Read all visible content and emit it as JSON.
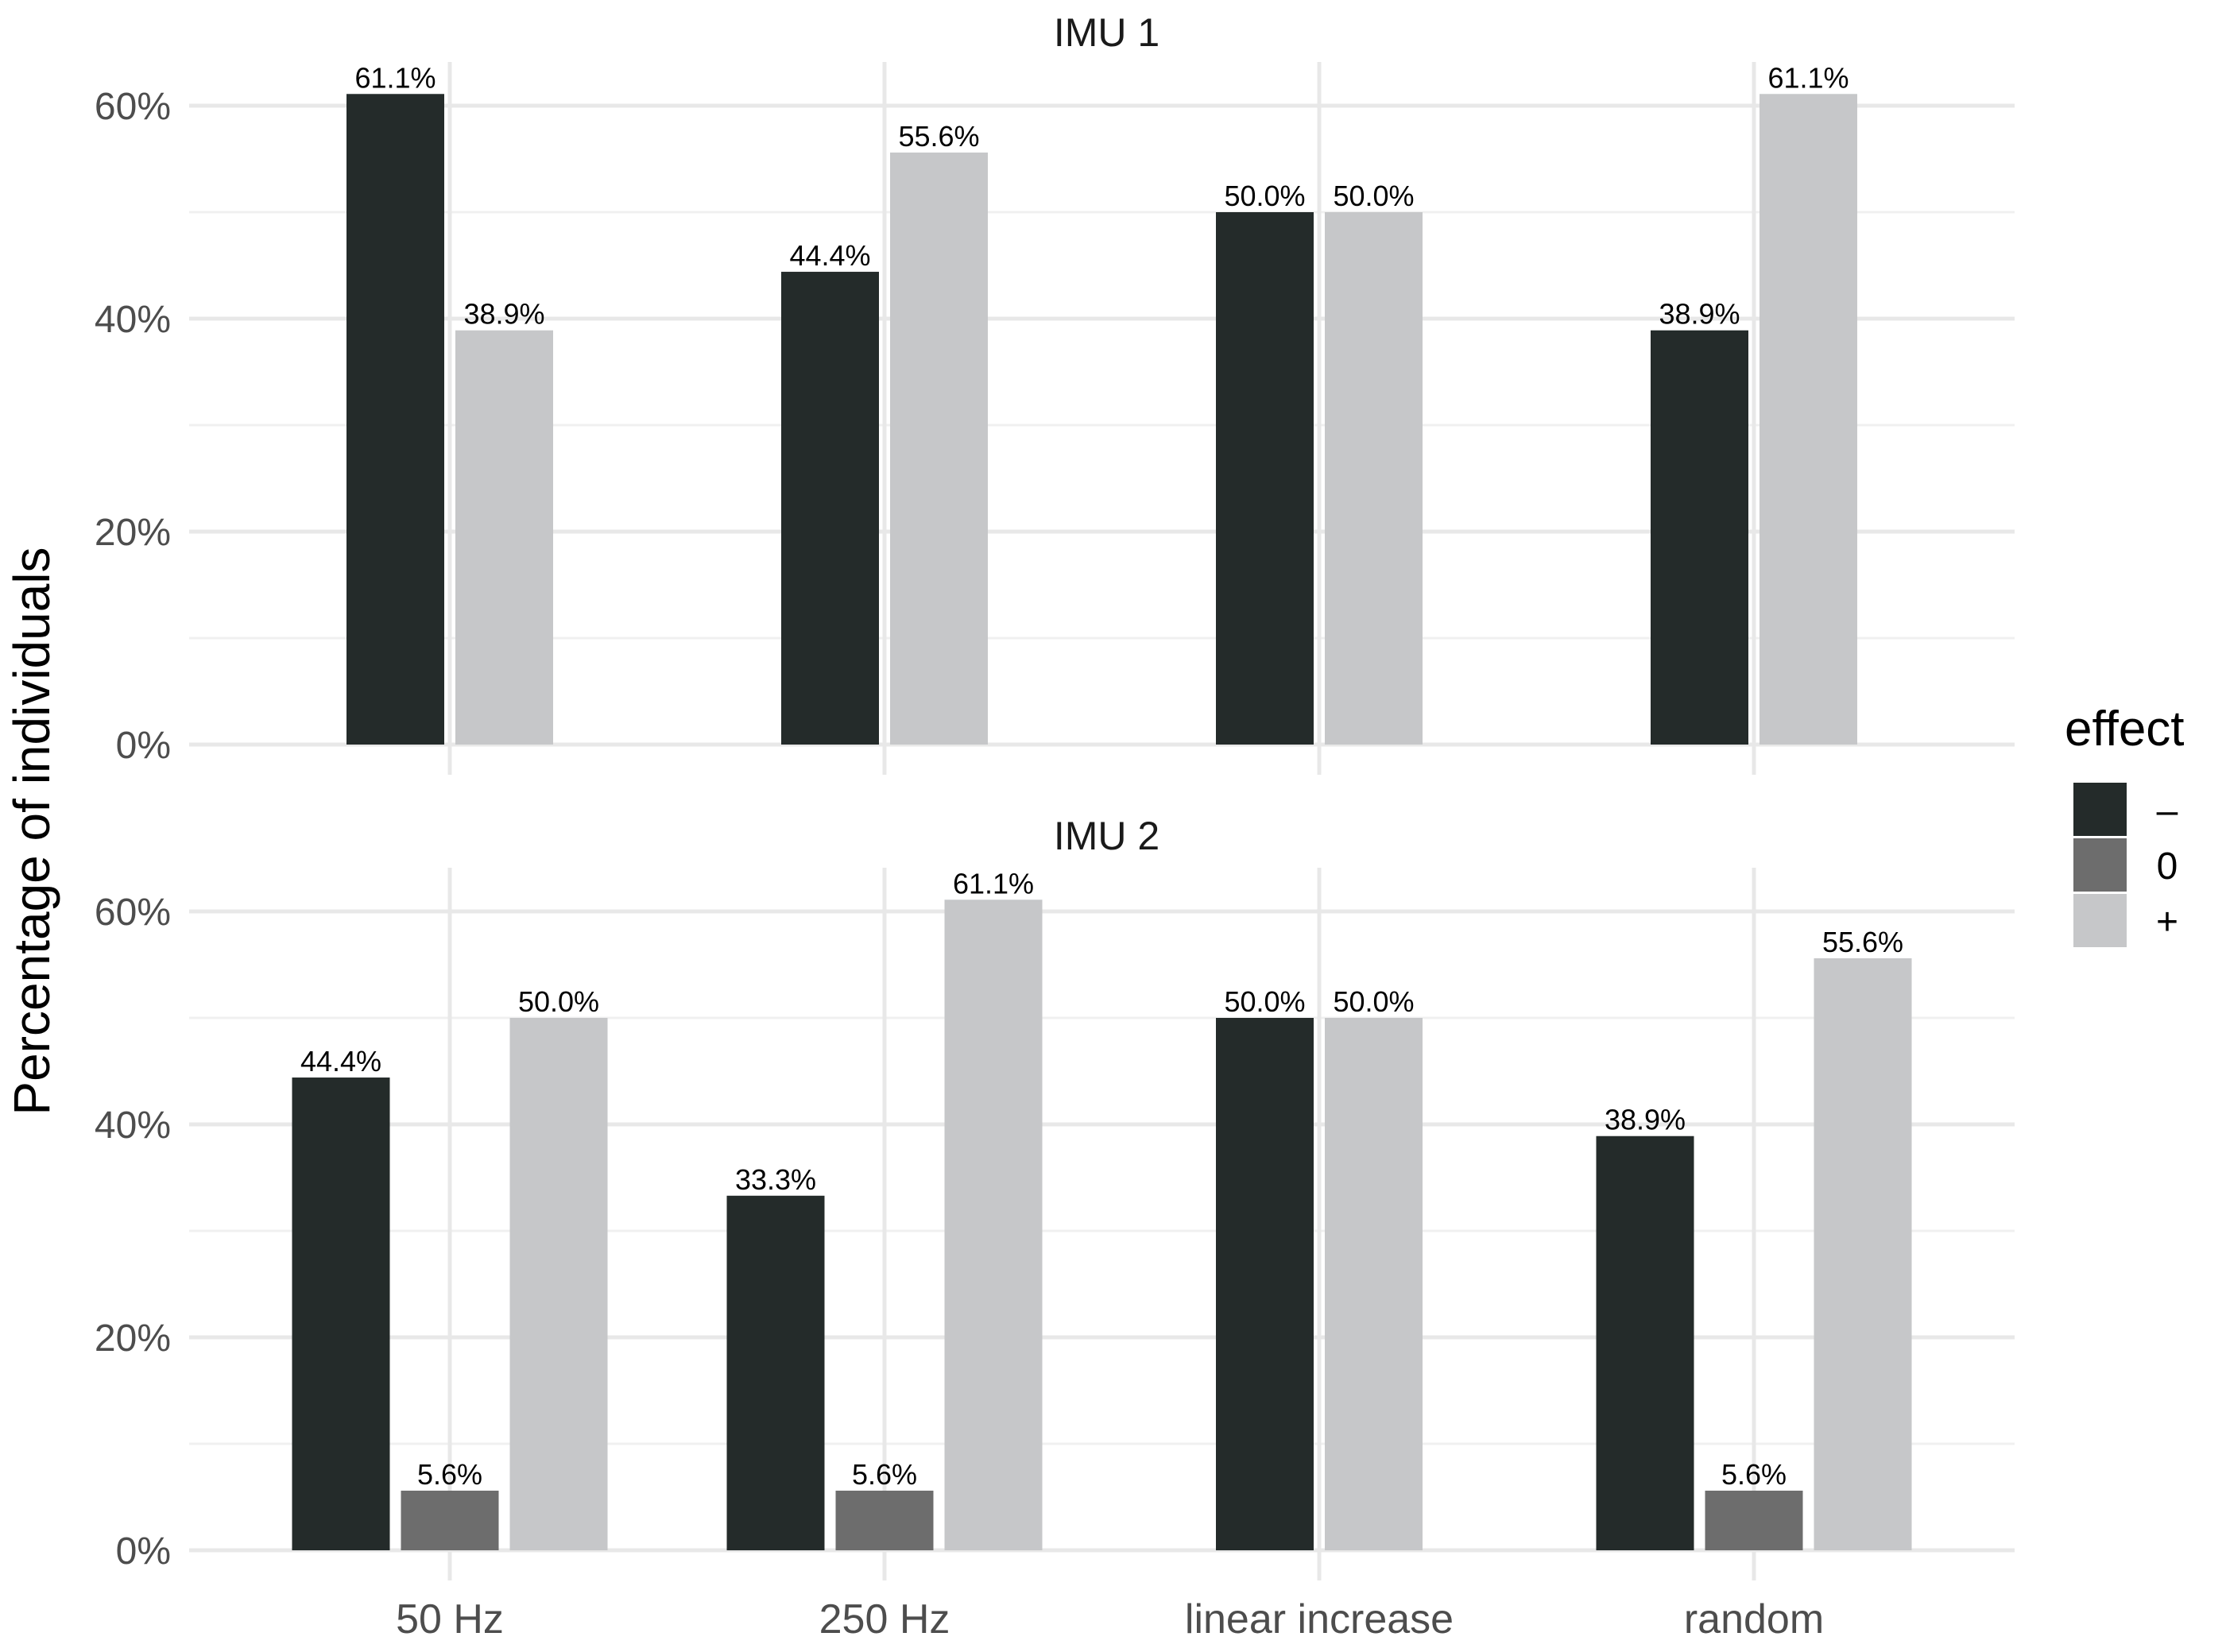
{
  "chart_data": {
    "type": "bar",
    "ylabel": "Percentage of individuals",
    "xlabel": "",
    "categories": [
      "50 Hz",
      "250 Hz",
      "linear increase",
      "random"
    ],
    "ylim": [
      0,
      63
    ],
    "yticks": [
      0,
      20,
      40,
      60
    ],
    "ytick_labels": [
      "0%",
      "20%",
      "40%",
      "60%"
    ],
    "legend": {
      "title": "effect",
      "position": "right",
      "entries": [
        {
          "key": "-",
          "label": "–",
          "color": "#242b2a"
        },
        {
          "key": "0",
          "label": "0",
          "color": "#6d6d6d"
        },
        {
          "key": "+",
          "label": "+",
          "color": "#c6c7c9"
        }
      ]
    },
    "panels": [
      {
        "title": "IMU 1",
        "groups": [
          {
            "category": "50 Hz",
            "bars": [
              {
                "effect": "-",
                "value": 61.1,
                "label": "61.1%"
              },
              {
                "effect": "+",
                "value": 38.9,
                "label": "38.9%"
              }
            ]
          },
          {
            "category": "250 Hz",
            "bars": [
              {
                "effect": "-",
                "value": 44.4,
                "label": "44.4%"
              },
              {
                "effect": "+",
                "value": 55.6,
                "label": "55.6%"
              }
            ]
          },
          {
            "category": "linear increase",
            "bars": [
              {
                "effect": "-",
                "value": 50.0,
                "label": "50.0%"
              },
              {
                "effect": "+",
                "value": 50.0,
                "label": "50.0%"
              }
            ]
          },
          {
            "category": "random",
            "bars": [
              {
                "effect": "-",
                "value": 38.9,
                "label": "38.9%"
              },
              {
                "effect": "+",
                "value": 61.1,
                "label": "61.1%"
              }
            ]
          }
        ]
      },
      {
        "title": "IMU 2",
        "groups": [
          {
            "category": "50 Hz",
            "bars": [
              {
                "effect": "-",
                "value": 44.4,
                "label": "44.4%"
              },
              {
                "effect": "0",
                "value": 5.6,
                "label": "5.6%"
              },
              {
                "effect": "+",
                "value": 50.0,
                "label": "50.0%"
              }
            ]
          },
          {
            "category": "250 Hz",
            "bars": [
              {
                "effect": "-",
                "value": 33.3,
                "label": "33.3%"
              },
              {
                "effect": "0",
                "value": 5.6,
                "label": "5.6%"
              },
              {
                "effect": "+",
                "value": 61.1,
                "label": "61.1%"
              }
            ]
          },
          {
            "category": "linear increase",
            "bars": [
              {
                "effect": "-",
                "value": 50.0,
                "label": "50.0%"
              },
              {
                "effect": "+",
                "value": 50.0,
                "label": "50.0%"
              }
            ]
          },
          {
            "category": "random",
            "bars": [
              {
                "effect": "-",
                "value": 38.9,
                "label": "38.9%"
              },
              {
                "effect": "0",
                "value": 5.6,
                "label": "5.6%"
              },
              {
                "effect": "+",
                "value": 55.6,
                "label": "55.6%"
              }
            ]
          }
        ]
      }
    ]
  }
}
